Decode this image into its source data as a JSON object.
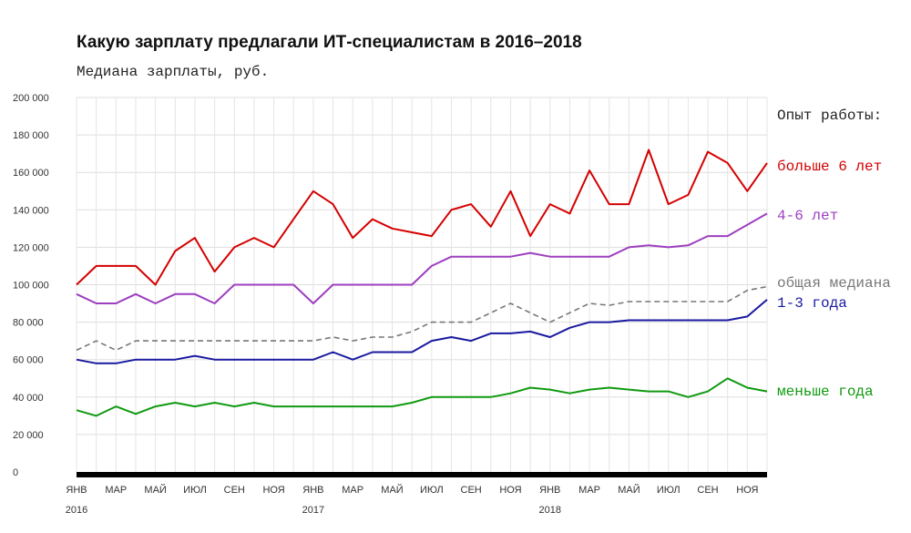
{
  "chart_data": {
    "type": "line",
    "title": "Какую зарплату предлагали ИТ-специалистам в 2016–2018",
    "subtitle": "Медиана зарплаты, руб.",
    "ylim": [
      0,
      200000
    ],
    "yticks": [
      "0",
      "20 000",
      "40 000",
      "60 000",
      "80 000",
      "100 000",
      "120 000",
      "140 000",
      "160 000",
      "180 000",
      "200 000"
    ],
    "x_tick_labels": [
      "ЯНВ",
      "МАР",
      "МАЙ",
      "ИЮЛ",
      "СЕН",
      "НОЯ",
      "ЯНВ",
      "МАР",
      "МАЙ",
      "ИЮЛ",
      "СЕН",
      "НОЯ",
      "ЯНВ",
      "МАР",
      "МАЙ",
      "ИЮЛ",
      "СЕН",
      "НОЯ"
    ],
    "year_labels": [
      "2016",
      "2017",
      "2018"
    ],
    "x": [
      "2016-01",
      "2016-02",
      "2016-03",
      "2016-04",
      "2016-05",
      "2016-06",
      "2016-07",
      "2016-08",
      "2016-09",
      "2016-10",
      "2016-11",
      "2016-12",
      "2017-01",
      "2017-02",
      "2017-03",
      "2017-04",
      "2017-05",
      "2017-06",
      "2017-07",
      "2017-08",
      "2017-09",
      "2017-10",
      "2017-11",
      "2017-12",
      "2018-01",
      "2018-02",
      "2018-03",
      "2018-04",
      "2018-05",
      "2018-06",
      "2018-07",
      "2018-08",
      "2018-09",
      "2018-10",
      "2018-11",
      "2018-12"
    ],
    "legend_title": "Опыт работы:",
    "series": [
      {
        "name": "больше 6 лет",
        "color": "#d40000",
        "dashed": false,
        "values": [
          100000,
          110000,
          110000,
          110000,
          100000,
          118000,
          125000,
          107000,
          120000,
          125000,
          120000,
          135000,
          150000,
          143000,
          125000,
          135000,
          130000,
          128000,
          126000,
          140000,
          143000,
          131000,
          150000,
          126000,
          143000,
          138000,
          161000,
          143000,
          143000,
          172000,
          143000,
          148000,
          171000,
          165000,
          150000,
          165000
        ]
      },
      {
        "name": "4-6 лет",
        "color": "#9d3fbf",
        "dashed": false,
        "values": [
          95000,
          90000,
          90000,
          95000,
          90000,
          95000,
          95000,
          90000,
          100000,
          100000,
          100000,
          100000,
          90000,
          100000,
          100000,
          100000,
          100000,
          100000,
          110000,
          115000,
          115000,
          115000,
          115000,
          117000,
          115000,
          115000,
          115000,
          115000,
          120000,
          121000,
          120000,
          121000,
          126000,
          126000,
          132000,
          138000
        ]
      },
      {
        "name": "общая медиана",
        "color": "#777777",
        "dashed": true,
        "values": [
          65000,
          70000,
          65000,
          70000,
          70000,
          70000,
          70000,
          70000,
          70000,
          70000,
          70000,
          70000,
          70000,
          72000,
          70000,
          72000,
          72000,
          75000,
          80000,
          80000,
          80000,
          85000,
          90000,
          85000,
          80000,
          85000,
          90000,
          89000,
          91000,
          91000,
          91000,
          91000,
          91000,
          91000,
          97000,
          99000
        ]
      },
      {
        "name": "1-3 года",
        "color": "#1a1aa0",
        "dashed": false,
        "values": [
          60000,
          58000,
          58000,
          60000,
          60000,
          60000,
          62000,
          60000,
          60000,
          60000,
          60000,
          60000,
          60000,
          64000,
          60000,
          64000,
          64000,
          64000,
          70000,
          72000,
          70000,
          74000,
          74000,
          75000,
          72000,
          77000,
          80000,
          80000,
          81000,
          81000,
          81000,
          81000,
          81000,
          81000,
          83000,
          92000
        ]
      },
      {
        "name": "меньше года",
        "color": "#109a10",
        "dashed": false,
        "values": [
          33000,
          30000,
          35000,
          31000,
          35000,
          37000,
          35000,
          37000,
          35000,
          37000,
          35000,
          35000,
          35000,
          35000,
          35000,
          35000,
          35000,
          37000,
          40000,
          40000,
          40000,
          40000,
          42000,
          45000,
          44000,
          42000,
          44000,
          45000,
          44000,
          43000,
          43000,
          40000,
          43000,
          50000,
          45000,
          43000
        ]
      }
    ]
  }
}
